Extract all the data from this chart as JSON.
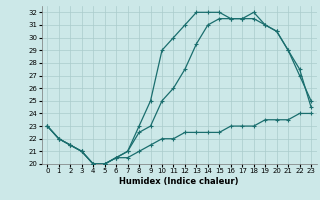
{
  "xlabel": "Humidex (Indice chaleur)",
  "bg_color": "#cce8e8",
  "grid_color": "#aacccc",
  "line_color": "#1a6e6e",
  "xlim": [
    -0.5,
    23.5
  ],
  "ylim": [
    20,
    32.5
  ],
  "xticks": [
    0,
    1,
    2,
    3,
    4,
    5,
    6,
    7,
    8,
    9,
    10,
    11,
    12,
    13,
    14,
    15,
    16,
    17,
    18,
    19,
    20,
    21,
    22,
    23
  ],
  "yticks": [
    20,
    21,
    22,
    23,
    24,
    25,
    26,
    27,
    28,
    29,
    30,
    31,
    32
  ],
  "line1_x": [
    0,
    1,
    2,
    3,
    4,
    5,
    6,
    7,
    8,
    9,
    10,
    11,
    12,
    13,
    14,
    15,
    16,
    17,
    18,
    19,
    20,
    21,
    22,
    23
  ],
  "line1_y": [
    23,
    22,
    21.5,
    21,
    20,
    20,
    20.5,
    20.5,
    21,
    21.5,
    22,
    22,
    22.5,
    22.5,
    22.5,
    22.5,
    23,
    23,
    23,
    23.5,
    23.5,
    23.5,
    24,
    24
  ],
  "line2_x": [
    0,
    1,
    2,
    3,
    4,
    5,
    6,
    7,
    8,
    9,
    10,
    11,
    12,
    13,
    14,
    15,
    16,
    17,
    18,
    19,
    20,
    21,
    22,
    23
  ],
  "line2_y": [
    23,
    22,
    21.5,
    21,
    20,
    20,
    20.5,
    21,
    22.5,
    23,
    25,
    26,
    27.5,
    29.5,
    31,
    31.5,
    31.5,
    31.5,
    31.5,
    31,
    30.5,
    29,
    27,
    25
  ],
  "line3_x": [
    0,
    1,
    2,
    3,
    4,
    5,
    6,
    7,
    8,
    9,
    10,
    11,
    12,
    13,
    14,
    15,
    16,
    17,
    18,
    19,
    20,
    21,
    22,
    23
  ],
  "line3_y": [
    23,
    22,
    21.5,
    21,
    20,
    20,
    20.5,
    21,
    23,
    25,
    29,
    30,
    31,
    32,
    32,
    32,
    31.5,
    31.5,
    32,
    31,
    30.5,
    29,
    27.5,
    24.5
  ]
}
